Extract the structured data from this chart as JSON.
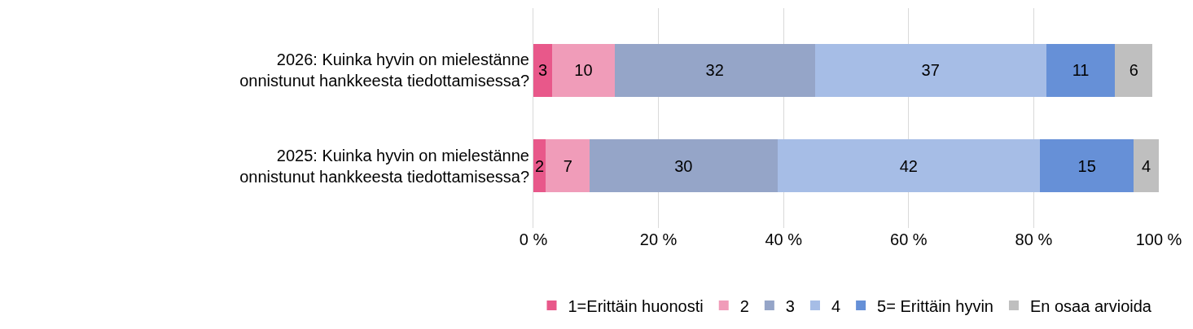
{
  "chart_data": {
    "type": "bar",
    "orientation": "horizontal",
    "stacked": true,
    "categories": [
      "2026: Kuinka hyvin on mielestänne onnistunut hankkeesta tiedottamisessa?",
      "2025: Kuinka hyvin on mielestänne onnistunut hankkeesta tiedottamisessa?"
    ],
    "series": [
      {
        "name": "1=Erittäin huonosti",
        "color": "#e8588a",
        "values": [
          3,
          2
        ]
      },
      {
        "name": "2",
        "color": "#f09cb9",
        "values": [
          10,
          7
        ]
      },
      {
        "name": "3",
        "color": "#95a5c8",
        "values": [
          32,
          30
        ]
      },
      {
        "name": "4",
        "color": "#a6bde6",
        "values": [
          37,
          42
        ]
      },
      {
        "name": "5= Erittäin hyvin",
        "color": "#6690d7",
        "values": [
          11,
          15
        ]
      },
      {
        "name": "En osaa arvioida",
        "color": "#bfbfbf",
        "values": [
          6,
          4
        ]
      }
    ],
    "xlim": [
      0,
      100
    ],
    "xticks": [
      {
        "value": 0,
        "label": "0 %"
      },
      {
        "value": 20,
        "label": "20 %"
      },
      {
        "value": 40,
        "label": "40 %"
      },
      {
        "value": 60,
        "label": "60 %"
      },
      {
        "value": 80,
        "label": "80 %"
      },
      {
        "value": 100,
        "label": "100 %"
      }
    ],
    "grid": "x",
    "legend": "bottom",
    "data_labels": true
  }
}
